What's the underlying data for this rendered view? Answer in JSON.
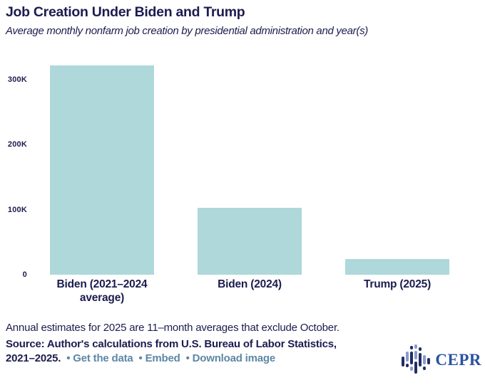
{
  "header": {
    "title": "Job Creation Under Biden and Trump",
    "subtitle": "Average monthly nonfarm job creation by presidential administration and year(s)"
  },
  "chart_data": {
    "type": "bar",
    "title": "Job Creation Under Biden and Trump",
    "subtitle": "Average monthly nonfarm job creation by presidential administration and year(s)",
    "categories": [
      "Biden (2021–2024 average)",
      "Biden (2024)",
      "Trump (2025)"
    ],
    "values": [
      322,
      103,
      24
    ],
    "unit": "thousands of jobs per month",
    "xlabel": "",
    "ylabel": "",
    "ylim": [
      0,
      330
    ],
    "grid": false,
    "legend": "none",
    "bar_color": "#aed8da",
    "yticks": [
      {
        "value": 0,
        "label": "0"
      },
      {
        "value": 100,
        "label": "100K"
      },
      {
        "value": 200,
        "label": "200K"
      },
      {
        "value": 300,
        "label": "300K"
      }
    ]
  },
  "footer": {
    "note": "Annual estimates for 2025 are 11–month averages that exclude October.",
    "source_line1": "Source: Author's calculations from U.S. Bureau of Labor Statistics,",
    "source_line2": "2021–2025.",
    "bullet": "•",
    "links": [
      {
        "label": "Get the data"
      },
      {
        "label": "Embed"
      },
      {
        "label": "Download image"
      }
    ]
  },
  "branding": {
    "logo_text": "CEPR"
  },
  "colors": {
    "text_navy": "#1c1c4f",
    "bar_teal": "#aed8da",
    "link_blue": "#5d87a5",
    "cepr_blue": "#2a52a2",
    "logo_dark": "#222d66",
    "logo_light": "#8a9aca"
  }
}
